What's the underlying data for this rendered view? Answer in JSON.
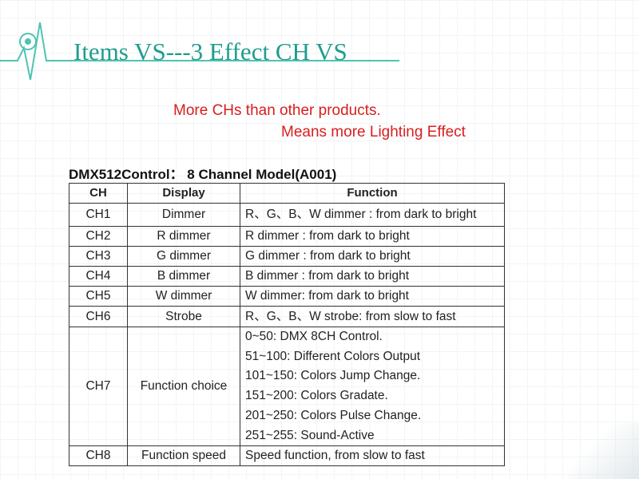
{
  "slide": {
    "title": "Items VS---3 Effect CH VS",
    "note_line_1": "More CHs than other products.",
    "note_line_2": "Means more Lighting Effect"
  },
  "table": {
    "caption": "DMX512Control： 8 Channel Model(A001)",
    "headers": {
      "ch": "CH",
      "display": "Display",
      "function": "Function"
    },
    "rows": [
      {
        "ch": "CH1",
        "display": "Dimmer",
        "function": "R、G、B、W dimmer : from dark to bright"
      },
      {
        "ch": "CH2",
        "display": "R dimmer",
        "function": "R dimmer : from dark to bright"
      },
      {
        "ch": "CH3",
        "display": "G dimmer",
        "function": "G dimmer : from dark to bright"
      },
      {
        "ch": "CH4",
        "display": "B dimmer",
        "function": "B dimmer : from dark to bright"
      },
      {
        "ch": "CH5",
        "display": "W dimmer",
        "function": "W dimmer: from dark to bright"
      },
      {
        "ch": "CH6",
        "display": "Strobe",
        "function": "R、G、B、W strobe: from slow to fast"
      },
      {
        "ch": "CH7",
        "display": "Function choice",
        "function_lines": [
          "0~50: DMX 8CH Control.",
          "51~100: Different Colors Output",
          "101~150: Colors Jump Change.",
          "151~200: Colors Gradate.",
          "201~250: Colors Pulse Change.",
          "251~255: Sound-Active"
        ]
      },
      {
        "ch": "CH8",
        "display": "Function speed",
        "function": "Speed function, from slow to fast"
      }
    ]
  },
  "colors": {
    "title": "#1f9d8e",
    "note": "#d81e1e",
    "logo": "#4fc3b3",
    "table_border": "#333333"
  },
  "icons": {
    "logo": "pulse-line-icon"
  }
}
